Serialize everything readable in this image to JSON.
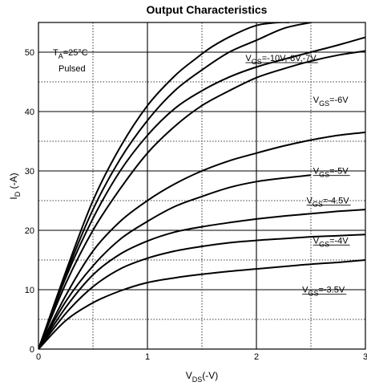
{
  "chart_data": {
    "type": "line",
    "title": "Output Characteristics",
    "xlabel": {
      "main": "V",
      "sub": "DS",
      "rest": "(-V)"
    },
    "ylabel": {
      "main": "I",
      "sub": "D",
      "rest": " (-A)"
    },
    "xlim": [
      0,
      3
    ],
    "ylim": [
      0,
      55
    ],
    "x_ticks": [
      0,
      1,
      2,
      3
    ],
    "y_ticks": [
      0,
      10,
      20,
      30,
      40,
      50
    ],
    "x_gridlines": [
      0.5,
      1,
      1.5,
      2,
      2.5
    ],
    "y_gridlines_solid": [
      10,
      20,
      30,
      40,
      50
    ],
    "y_gridlines_dotted": [
      5,
      15,
      25,
      35,
      45
    ],
    "conditions": {
      "temp_main": "T",
      "temp_sub": "A",
      "temp_rest": "=25°C",
      "mode": "Pulsed"
    },
    "series": [
      {
        "x": [
          0,
          0.25,
          0.5,
          0.75,
          1.0,
          1.25,
          1.45,
          1.6,
          1.8,
          2.0,
          2.2,
          2.3
        ],
        "values": [
          0,
          13,
          25,
          34,
          41,
          46,
          49,
          51,
          53,
          54.5,
          55,
          55
        ]
      },
      {
        "x": [
          0,
          0.25,
          0.5,
          0.75,
          1.0,
          1.25,
          1.5,
          1.75,
          2.0,
          2.25,
          2.5
        ],
        "values": [
          0,
          12.5,
          23.5,
          32,
          38.5,
          43.5,
          47,
          50,
          52,
          54,
          55
        ]
      },
      {
        "x": [
          0,
          0.25,
          0.5,
          0.75,
          1.0,
          1.25,
          1.5,
          1.75,
          2.0,
          2.25,
          2.5,
          2.75,
          3.0
        ],
        "values": [
          0,
          12,
          22,
          30,
          36,
          40.5,
          43.5,
          45.8,
          47.5,
          48.8,
          50,
          51.2,
          52.5
        ]
      },
      {
        "x": [
          0,
          0.25,
          0.5,
          0.75,
          1.0,
          1.25,
          1.5,
          1.75,
          2.0,
          2.25,
          2.5,
          2.75,
          3.0
        ],
        "values": [
          0,
          11,
          20,
          27,
          33,
          37.5,
          41,
          43.5,
          45.7,
          47.2,
          48.5,
          49.5,
          50.2
        ]
      },
      {
        "x": [
          0,
          0.25,
          0.5,
          0.75,
          1.0,
          1.25,
          1.5,
          1.75,
          2.0,
          2.25,
          2.5,
          2.75,
          3.0
        ],
        "values": [
          0,
          9,
          16.5,
          21.5,
          25,
          27.8,
          30,
          31.7,
          33,
          34.2,
          35.2,
          36,
          36.5
        ]
      },
      {
        "x": [
          0,
          0.25,
          0.5,
          0.75,
          1.0,
          1.25,
          1.5,
          1.75,
          2.0,
          2.25,
          2.5
        ],
        "values": [
          0,
          8,
          14,
          18.5,
          21.5,
          24,
          25.7,
          27.2,
          28.2,
          28.8,
          29.3
        ]
      },
      {
        "x": [
          0,
          0.25,
          0.5,
          0.75,
          1.0,
          1.25,
          1.5,
          1.75,
          2.0,
          2.25,
          2.5,
          2.75,
          3.0
        ],
        "values": [
          0,
          7,
          12.5,
          16,
          18.2,
          19.7,
          20.6,
          21.3,
          21.9,
          22.4,
          22.8,
          23.2,
          23.5
        ]
      },
      {
        "x": [
          0,
          0.25,
          0.5,
          0.75,
          1.0,
          1.25,
          1.5,
          1.75,
          2.0,
          2.25,
          2.5,
          2.75,
          3.0
        ],
        "values": [
          0,
          6,
          10.5,
          13.5,
          15.3,
          16.5,
          17.3,
          17.9,
          18.3,
          18.6,
          18.9,
          19.1,
          19.3
        ]
      },
      {
        "x": [
          0,
          0.25,
          0.5,
          0.75,
          1.0,
          1.25,
          1.5,
          1.75,
          2.0,
          2.25,
          2.5,
          2.75,
          3.0
        ],
        "values": [
          0,
          4.8,
          7.8,
          9.8,
          11.2,
          12.0,
          12.6,
          13.1,
          13.5,
          13.9,
          14.3,
          14.6,
          15.0
        ]
      }
    ],
    "curve_labels": [
      {
        "main": "V",
        "sub": "GS",
        "rest": "=-10V,-8V,-7V",
        "x": 1.9,
        "y": 48.5,
        "leader": [
          1.9,
          47.2
        ]
      },
      {
        "main": "V",
        "sub": "GS",
        "rest": "=-6V",
        "x": 2.52,
        "y": 41.5,
        "leader": null
      },
      {
        "main": "V",
        "sub": "GS",
        "rest": "=-5V",
        "x": 2.52,
        "y": 29.5,
        "leader": [
          2.52,
          29.4
        ]
      },
      {
        "main": "V",
        "sub": "GS",
        "rest": "=-4.5V",
        "x": 2.46,
        "y": 24.5,
        "leader": [
          2.46,
          23.0
        ]
      },
      {
        "main": "V",
        "sub": "GS",
        "rest": "=-4V",
        "x": 2.52,
        "y": 17.8,
        "leader": [
          2.52,
          17.3
        ]
      },
      {
        "main": "V",
        "sub": "GS",
        "rest": "=-3.5V",
        "x": 2.42,
        "y": 9.5,
        "leader": [
          2.42,
          9.0
        ]
      }
    ]
  }
}
